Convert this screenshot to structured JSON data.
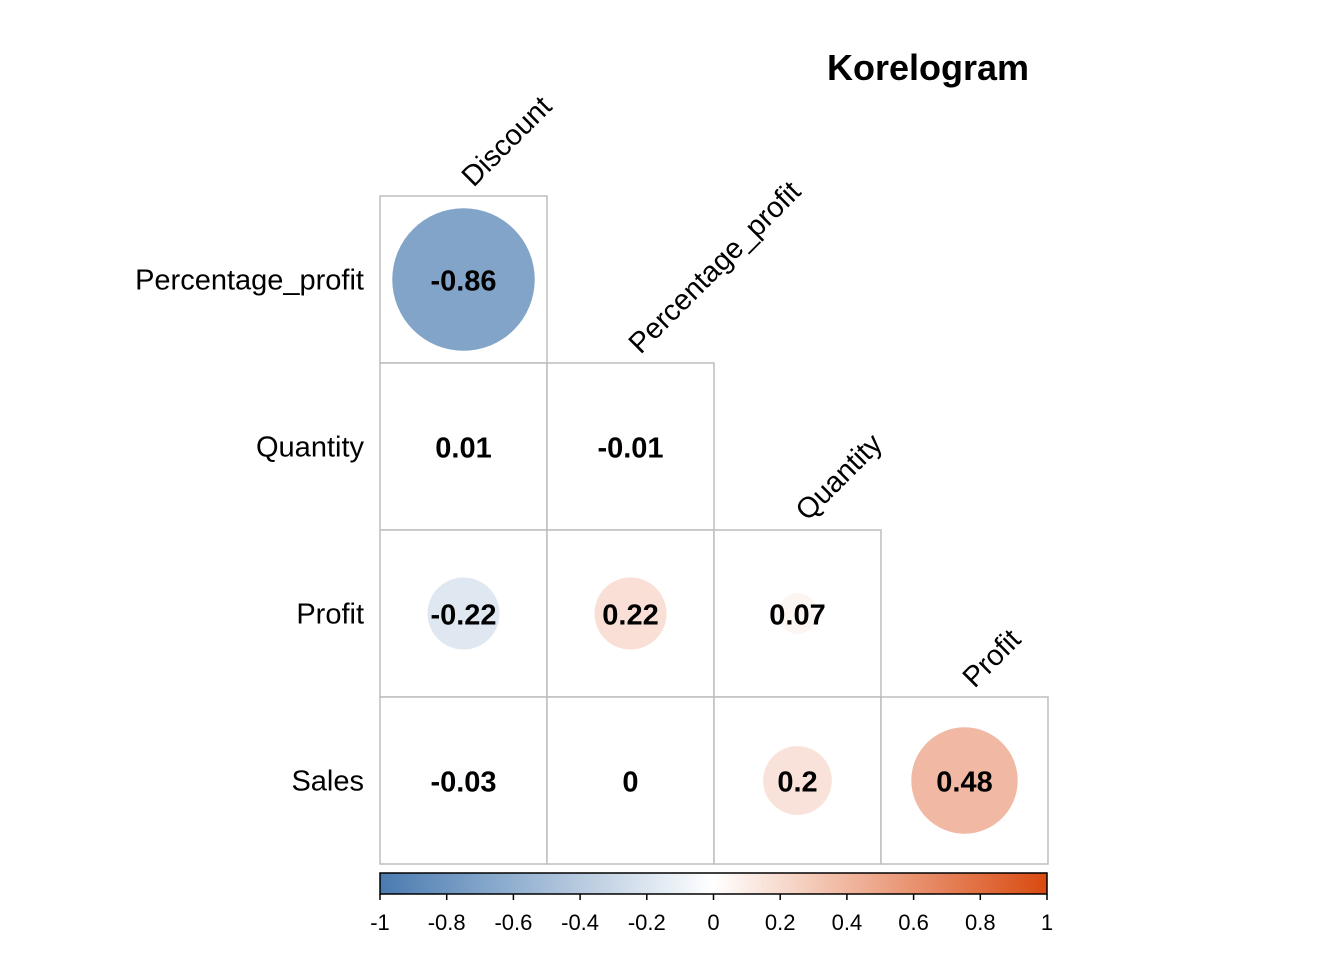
{
  "chart_data": {
    "type": "heatmap",
    "title": "Korelogram",
    "row_labels": [
      "Percentage_profit",
      "Quantity",
      "Profit",
      "Sales"
    ],
    "col_labels": [
      "Discount",
      "Percentage_profit",
      "Quantity",
      "Profit"
    ],
    "values": [
      [
        -0.86,
        null,
        null,
        null
      ],
      [
        0.01,
        -0.01,
        null,
        null
      ],
      [
        -0.22,
        0.22,
        0.07,
        null
      ],
      [
        -0.03,
        0,
        0.2,
        0.48
      ]
    ],
    "value_labels": [
      [
        "-0.86",
        null,
        null,
        null
      ],
      [
        "0.01",
        "-0.01",
        null,
        null
      ],
      [
        "-0.22",
        "0.22",
        "0.07",
        null
      ],
      [
        "-0.03",
        "0",
        "0.2",
        "0.48"
      ]
    ],
    "legend": {
      "range": [
        -1,
        1
      ],
      "ticks": [
        "-1",
        "-0.8",
        "-0.6",
        "-0.4",
        "-0.2",
        "0",
        "0.2",
        "0.4",
        "0.6",
        "0.8",
        "1"
      ],
      "colors": {
        "negative": "#4a7bb0",
        "zero": "#ffffff",
        "positive": "#d94a10"
      },
      "placement": "bottom"
    },
    "shape": "circle",
    "lower_triangle": true
  }
}
